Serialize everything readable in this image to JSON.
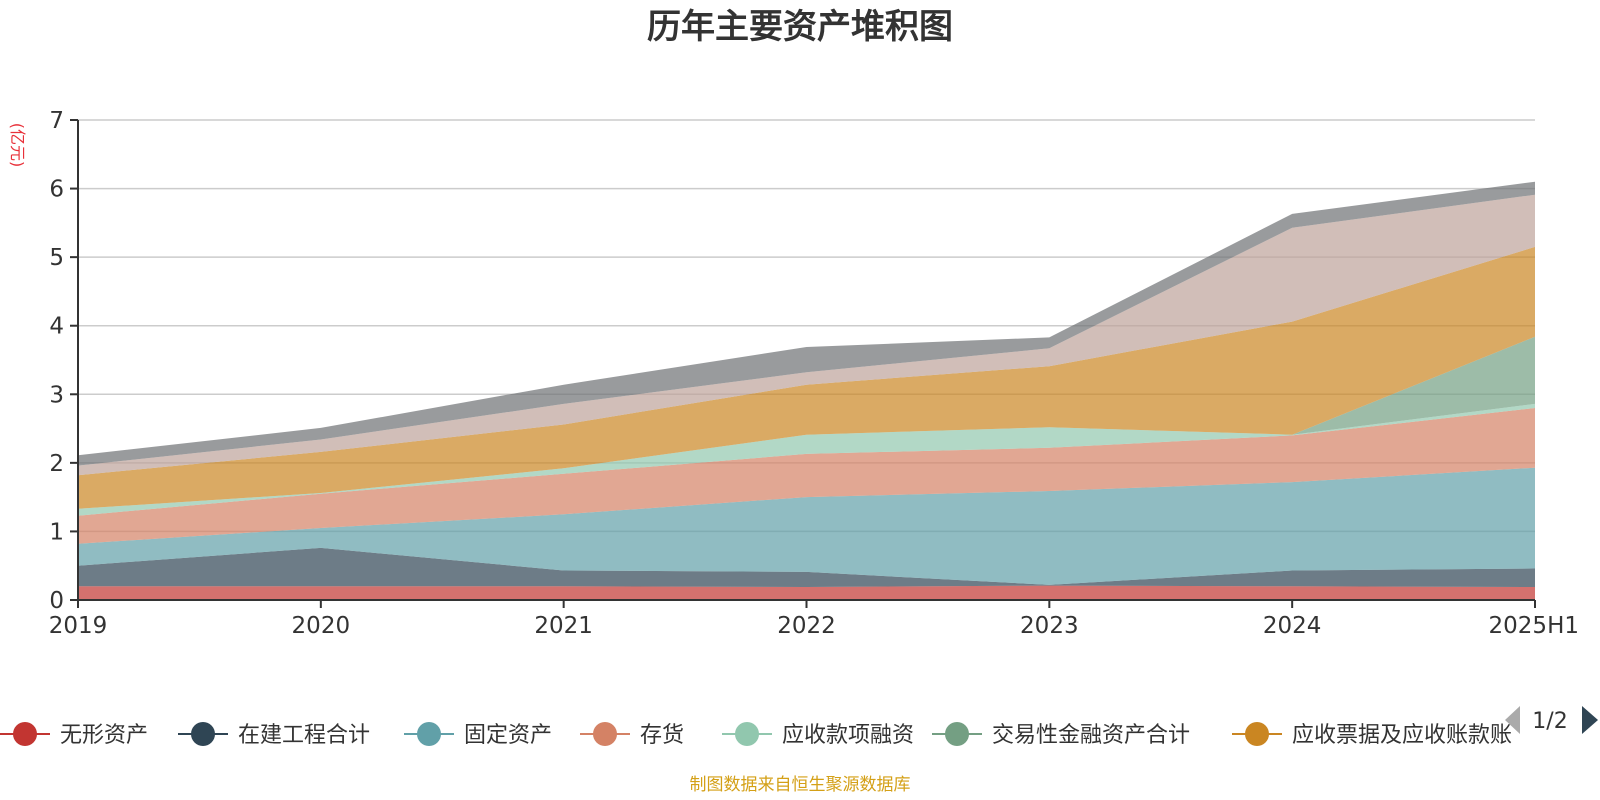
{
  "chart_data": {
    "type": "area",
    "stacked": true,
    "title": "历年主要资产堆积图",
    "unit_label": "(亿元)",
    "categories": [
      "2019",
      "2020",
      "2021",
      "2022",
      "2023",
      "2024",
      "2025H1"
    ],
    "ylim": [
      0,
      7
    ],
    "yticks": [
      0,
      1,
      2,
      3,
      4,
      5,
      6,
      7
    ],
    "grid": true,
    "legend_position": "bottom",
    "series": [
      {
        "name": "无形资产",
        "color": "#c23531",
        "legend_color": "#c23531",
        "values": [
          0.2,
          0.2,
          0.2,
          0.19,
          0.21,
          0.2,
          0.19
        ]
      },
      {
        "name": "在建工程合计",
        "color": "#2f4554",
        "legend_color": "#2f4554",
        "values": [
          0.3,
          0.56,
          0.23,
          0.22,
          0.01,
          0.23,
          0.27
        ]
      },
      {
        "name": "固定资产",
        "color": "#61a0a8",
        "legend_color": "#61a0a8",
        "values": [
          0.32,
          0.29,
          0.82,
          1.09,
          1.37,
          1.29,
          1.47
        ]
      },
      {
        "name": "存货",
        "color": "#d48265",
        "legend_color": "#d48265",
        "values": [
          0.41,
          0.5,
          0.59,
          0.63,
          0.63,
          0.68,
          0.87
        ]
      },
      {
        "name": "应收款项融资",
        "color": "#91c7ae",
        "legend_color": "#91c7ae",
        "values": [
          0.1,
          0.01,
          0.08,
          0.28,
          0.3,
          0.01,
          0.06
        ]
      },
      {
        "name": "交易性金融资产合计",
        "color": "#749f83",
        "legend_color": "#749f83",
        "values": [
          0,
          0,
          0,
          0,
          0,
          0,
          0.98
        ]
      },
      {
        "name": "应收票据及应收账款",
        "color": "#ca8622",
        "legend_color": "#ca8622",
        "values": [
          0.49,
          0.6,
          0.64,
          0.73,
          0.89,
          1.65,
          1.31
        ]
      },
      {
        "name": "",
        "color": "#bda29a",
        "legend_color": "#bda29a",
        "values": [
          0.14,
          0.18,
          0.3,
          0.18,
          0.26,
          1.37,
          0.76
        ]
      },
      {
        "name": "",
        "color": "#6e7074",
        "legend_color": "#6e7074",
        "values": [
          0.15,
          0.17,
          0.28,
          0.37,
          0.16,
          0.2,
          0.19
        ]
      }
    ],
    "legend_visible_count": 7,
    "legend_item_suffix": "账"
  },
  "legend": {
    "page_indicator": "1/2"
  },
  "footer": {
    "source": "制图数据来自恒生聚源数据库"
  },
  "colors": {
    "grid": "#cccccc",
    "axis": "#333333",
    "pager_inactive": "#aaaaaa",
    "pager_active": "#2f4554"
  }
}
